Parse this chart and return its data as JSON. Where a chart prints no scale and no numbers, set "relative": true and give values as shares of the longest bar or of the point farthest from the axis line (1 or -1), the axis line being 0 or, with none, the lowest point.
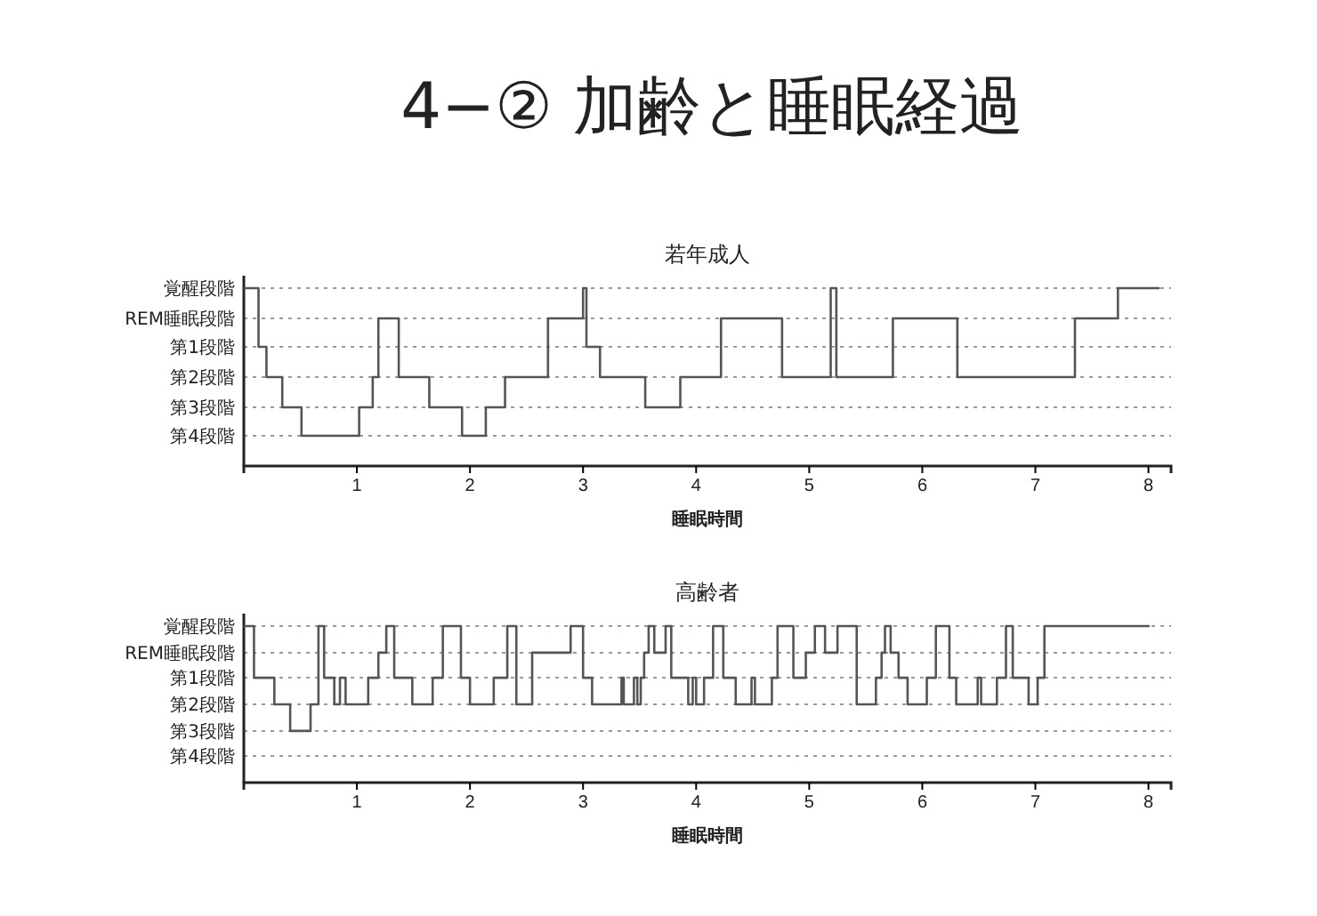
{
  "chart_data": [
    {
      "type": "step",
      "relative": true,
      "title": "4−② 加齢と睡眠経過",
      "subtitle": "若年成人",
      "xlabel": "睡眠時間",
      "xlim": [
        0,
        8.2
      ],
      "xticks": [
        1,
        2,
        3,
        4,
        5,
        6,
        7,
        8
      ],
      "line_style": "solid",
      "ref_lines": [
        {
          "axis": "y",
          "value": 1,
          "label": "覚醒段階",
          "line_style": "dotted",
          "color": "#999999"
        },
        {
          "axis": "y",
          "value": 0.83,
          "label": "REM睡眠段階",
          "line_style": "dotted",
          "color": "#999999"
        },
        {
          "axis": "y",
          "value": 0.67,
          "label": "第1段階",
          "line_style": "dotted",
          "color": "#999999"
        },
        {
          "axis": "y",
          "value": 0.5,
          "label": "第2段階",
          "line_style": "dotted",
          "color": "#999999"
        },
        {
          "axis": "y",
          "value": 0.33,
          "label": "第3段階",
          "line_style": "dotted",
          "color": "#999999"
        },
        {
          "axis": "y",
          "value": 0.17,
          "label": "第4段階",
          "line_style": "dotted",
          "color": "#999999"
        }
      ],
      "series": [
        {
          "color": "#555555",
          "x": [
            0,
            0.13,
            0.2,
            0.34,
            0.51,
            1.02,
            1.14,
            1.19,
            1.37,
            1.64,
            1.93,
            2.14,
            2.31,
            2.69,
            3.0,
            3.03,
            3.15,
            3.55,
            3.86,
            4.22,
            4.76,
            5.19,
            5.24,
            5.74,
            6.31,
            7.35,
            7.73,
            8.1
          ],
          "values": [
            1,
            0.67,
            0.5,
            0.33,
            0.17,
            0.33,
            0.5,
            0.83,
            0.5,
            0.33,
            0.17,
            0.33,
            0.5,
            0.83,
            1,
            0.67,
            0.5,
            0.33,
            0.5,
            0.83,
            0.5,
            1,
            0.5,
            0.83,
            0.5,
            0.83,
            1,
            1
          ]
        }
      ]
    },
    {
      "type": "step",
      "relative": true,
      "title": "高齢者",
      "xlabel": "睡眠時間",
      "xlim": [
        0,
        8.2
      ],
      "xticks": [
        1,
        2,
        3,
        4,
        5,
        6,
        7,
        8
      ],
      "line_style": "solid",
      "ref_lines": [
        {
          "axis": "y",
          "value": 1,
          "label": "覚醒段階",
          "line_style": "dotted",
          "color": "#999999"
        },
        {
          "axis": "y",
          "value": 0.83,
          "label": "REM睡眠段階",
          "line_style": "dotted",
          "color": "#999999"
        },
        {
          "axis": "y",
          "value": 0.67,
          "label": "第1段階",
          "line_style": "dotted",
          "color": "#999999"
        },
        {
          "axis": "y",
          "value": 0.5,
          "label": "第2段階",
          "line_style": "dotted",
          "color": "#999999"
        },
        {
          "axis": "y",
          "value": 0.33,
          "label": "第3段階",
          "line_style": "dotted",
          "color": "#999999"
        },
        {
          "axis": "y",
          "value": 0.17,
          "label": "第4段階",
          "line_style": "dotted",
          "color": "#999999"
        }
      ],
      "series": [
        {
          "color": "#555555",
          "x": [
            0,
            0.09,
            0.27,
            0.41,
            0.59,
            0.66,
            0.71,
            0.8,
            0.85,
            0.9,
            1.1,
            1.19,
            1.26,
            1.33,
            1.49,
            1.67,
            1.76,
            1.92,
            2.0,
            2.21,
            2.33,
            2.41,
            2.55,
            2.89,
            3.0,
            3.08,
            3.34,
            3.36,
            3.45,
            3.48,
            3.51,
            3.54,
            3.58,
            3.63,
            3.73,
            3.78,
            3.93,
            3.97,
            4.0,
            4.07,
            4.15,
            4.24,
            4.35,
            4.49,
            4.52,
            4.67,
            4.72,
            4.86,
            4.97,
            5.05,
            5.14,
            5.25,
            5.42,
            5.59,
            5.64,
            5.67,
            5.72,
            5.79,
            5.87,
            6.04,
            6.12,
            6.24,
            6.3,
            6.49,
            6.52,
            6.66,
            6.74,
            6.8,
            6.94,
            7.02,
            7.08,
            8.01
          ],
          "values": [
            1,
            0.67,
            0.5,
            0.33,
            0.5,
            1,
            0.67,
            0.5,
            0.67,
            0.5,
            0.67,
            0.83,
            1,
            0.67,
            0.5,
            0.67,
            1,
            0.67,
            0.5,
            0.67,
            1,
            0.5,
            0.83,
            1,
            0.67,
            0.5,
            0.67,
            0.5,
            0.67,
            0.5,
            0.67,
            0.83,
            1,
            0.83,
            1,
            0.67,
            0.5,
            0.67,
            0.5,
            0.67,
            1,
            0.67,
            0.5,
            0.67,
            0.5,
            0.67,
            1,
            0.67,
            0.83,
            1,
            0.83,
            1,
            0.5,
            0.67,
            0.83,
            1,
            0.83,
            0.67,
            0.5,
            0.67,
            1,
            0.67,
            0.5,
            0.67,
            0.5,
            0.67,
            1,
            0.67,
            0.5,
            0.67,
            1,
            1
          ]
        }
      ]
    }
  ]
}
